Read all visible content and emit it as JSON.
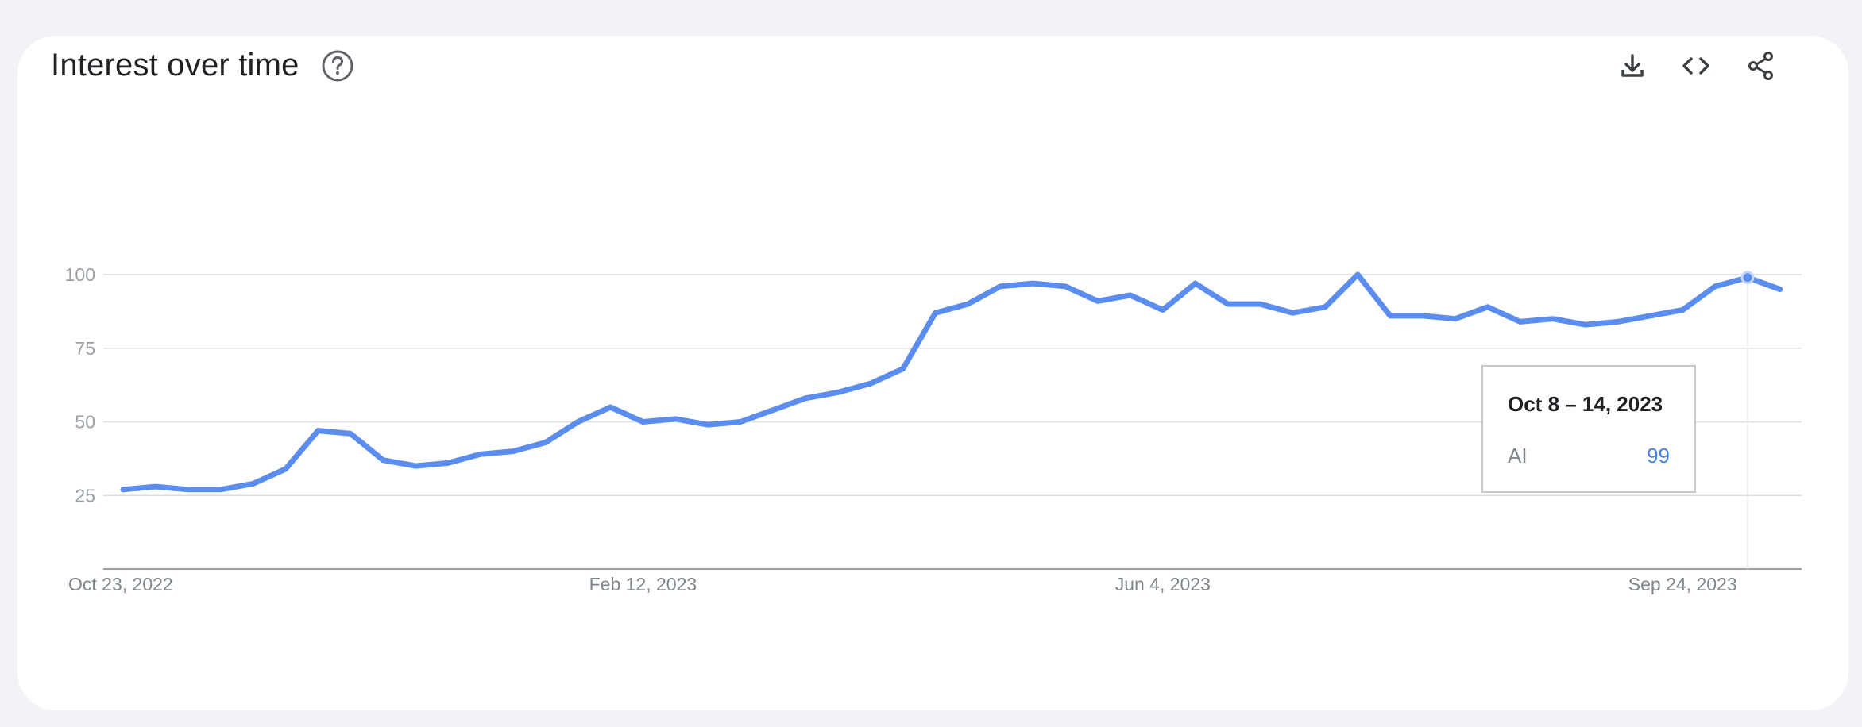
{
  "header": {
    "title": "Interest over time",
    "help_icon": "help-circle-icon",
    "actions": [
      "download-icon",
      "embed-code-icon",
      "share-icon"
    ]
  },
  "colors": {
    "line": "#5b8def",
    "grid": "#dadce0",
    "axis": "#9aa0a6",
    "background": "#f1f3f6"
  },
  "tooltip": {
    "date": "Oct 8 – 14, 2023",
    "term": "AI",
    "value": "99"
  },
  "chart_data": {
    "type": "line",
    "title": "Interest over time",
    "xlabel": "",
    "ylabel": "",
    "ylim": [
      0,
      100
    ],
    "yticks": [
      25,
      50,
      75,
      100
    ],
    "grid": true,
    "xtick_labels": [
      "Oct 23, 2022",
      "Feb 12, 2023",
      "Jun 4, 2023",
      "Sep 24, 2023"
    ],
    "xtick_indices": [
      0,
      16,
      32,
      48
    ],
    "x_start": "Oct 23, 2022",
    "x_step": "1 week",
    "highlighted_index": 50,
    "series": [
      {
        "name": "AI",
        "values": [
          27,
          28,
          27,
          27,
          29,
          34,
          47,
          46,
          37,
          35,
          36,
          39,
          40,
          43,
          50,
          55,
          50,
          51,
          49,
          50,
          54,
          58,
          60,
          63,
          68,
          87,
          90,
          96,
          97,
          96,
          91,
          93,
          88,
          97,
          90,
          90,
          87,
          89,
          100,
          86,
          86,
          85,
          89,
          84,
          85,
          83,
          84,
          86,
          88,
          96,
          99,
          95
        ]
      }
    ]
  }
}
